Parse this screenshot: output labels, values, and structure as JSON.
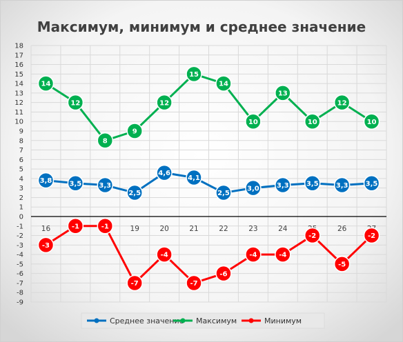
{
  "chart_data": {
    "type": "line",
    "title": "Максимум, минимум и среднее значение",
    "categories": [
      "16",
      "17",
      "18",
      "19",
      "20",
      "21",
      "22",
      "23",
      "24",
      "25",
      "26",
      "27"
    ],
    "ylim": [
      -9,
      18
    ],
    "yticks": [
      18,
      17,
      16,
      15,
      14,
      13,
      12,
      11,
      10,
      9,
      8,
      7,
      6,
      5,
      4,
      3,
      2,
      1,
      0,
      -1,
      -2,
      -3,
      -4,
      -5,
      -6,
      -7,
      -8,
      -9
    ],
    "grid": true,
    "legend_position": "bottom",
    "series": [
      {
        "name": "Среднее значение",
        "color": "#0070C0",
        "values": [
          3.8,
          3.5,
          3.3,
          2.5,
          4.6,
          4.1,
          2.5,
          3.0,
          3.3,
          3.5,
          3.3,
          3.5
        ],
        "labels": [
          "3,8",
          "3,5",
          "3,3",
          "2,5",
          "4,6",
          "4,1",
          "2,5",
          "3,0",
          "3,3",
          "3,5",
          "3,3",
          "3,5"
        ]
      },
      {
        "name": "Максимум",
        "color": "#00B050",
        "values": [
          14,
          12,
          8,
          9,
          12,
          15,
          14,
          10,
          13,
          10,
          12,
          10
        ],
        "labels": [
          "14",
          "12",
          "8",
          "9",
          "12",
          "15",
          "14",
          "10",
          "13",
          "10",
          "12",
          "10"
        ]
      },
      {
        "name": "Минимум",
        "color": "#FF0000",
        "values": [
          -3,
          -1,
          -1,
          -7,
          -4,
          -7,
          -6,
          -4,
          -4,
          -2,
          -5,
          -2
        ],
        "labels": [
          "-3",
          "-1",
          "-1",
          "-7",
          "-4",
          "-7",
          "-6",
          "-4",
          "-4",
          "-2",
          "-5",
          "-2"
        ]
      }
    ]
  }
}
